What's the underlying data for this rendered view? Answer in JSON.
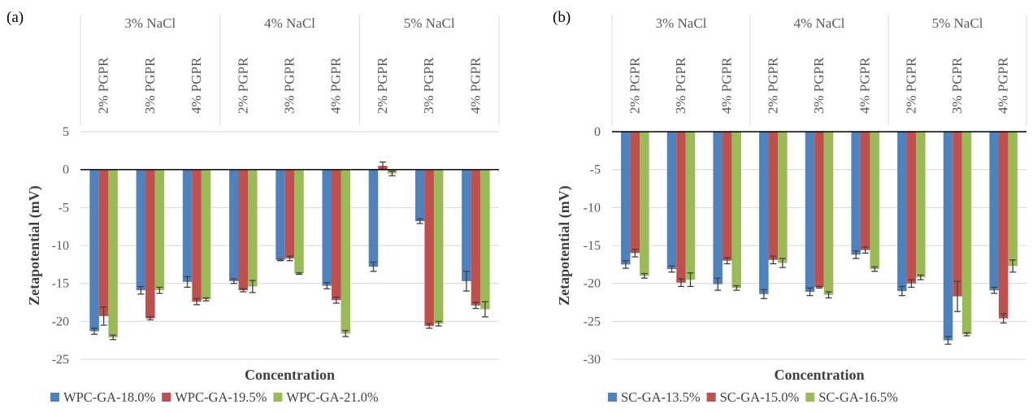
{
  "chart_data": [
    {
      "type": "bar",
      "panel_label": "(a)",
      "xlabel": "Concentration",
      "ylabel": "Zetapotential (mV)",
      "ylim": [
        -25,
        5
      ],
      "yticks": [
        5,
        0,
        -5,
        -10,
        -15,
        -20,
        -25
      ],
      "groups": [
        "3% NaCl",
        "4% NaCl",
        "5% NaCl"
      ],
      "categories": [
        "2% PGPR",
        "3% PGPR",
        "4% PGPR",
        "2% PGPR",
        "3% PGPR",
        "4% PGPR",
        "2% PGPR",
        "3% PGPR",
        "4% PGPR"
      ],
      "legend_position": "bottom",
      "series": [
        {
          "name": "WPC-GA-18.0%",
          "color": "#4f81bd",
          "values": [
            -21.3,
            -15.9,
            -14.8,
            -14.7,
            -11.9,
            -15.3,
            -12.8,
            -6.8,
            -14.7
          ],
          "errors": [
            0.4,
            0.5,
            0.7,
            0.3,
            0.1,
            0.4,
            0.6,
            0.3,
            1.3
          ]
        },
        {
          "name": "WPC-GA-19.5%",
          "color": "#c0504d",
          "values": [
            -19.3,
            -19.6,
            -17.4,
            -15.9,
            -11.7,
            -17.2,
            0.5,
            -20.6,
            -17.9
          ],
          "errors": [
            1.2,
            0.2,
            0.4,
            0.2,
            0.3,
            0.4,
            0.5,
            0.3,
            0.4
          ]
        },
        {
          "name": "WPC-GA-21.0%",
          "color": "#9bbb59",
          "values": [
            -22.1,
            -15.9,
            -17.1,
            -15.4,
            -13.7,
            -21.6,
            -0.5,
            -20.3,
            -18.4
          ],
          "errors": [
            0.3,
            0.4,
            0.2,
            0.8,
            0.1,
            0.4,
            0.3,
            0.3,
            1.0
          ]
        }
      ]
    },
    {
      "type": "bar",
      "panel_label": "(b)",
      "xlabel": "Concentration",
      "ylabel": "Zetapotential (mV)",
      "ylim": [
        -30,
        0
      ],
      "yticks": [
        0,
        -5,
        -10,
        -15,
        -20,
        -25,
        -30
      ],
      "groups": [
        "3% NaCl",
        "4% NaCl",
        "5% NaCl"
      ],
      "categories": [
        "2% PGPR",
        "3% PGPR",
        "4% PGPR",
        "2% PGPR",
        "3% PGPR",
        "4% PGPR",
        "2% PGPR",
        "3% PGPR",
        "4% PGPR"
      ],
      "legend_position": "bottom",
      "series": [
        {
          "name": "SC-GA-13.5%",
          "color": "#4f81bd",
          "values": [
            -17.5,
            -18.1,
            -20.1,
            -21.4,
            -21.1,
            -16.2,
            -21.0,
            -27.5,
            -20.9
          ],
          "errors": [
            0.5,
            0.4,
            0.8,
            0.6,
            0.5,
            0.5,
            0.6,
            0.5,
            0.4
          ]
        },
        {
          "name": "SC-GA-15.0%",
          "color": "#c0504d",
          "values": [
            -16.0,
            -19.9,
            -17.0,
            -16.9,
            -20.5,
            -15.6,
            -20.0,
            -21.7,
            -24.6
          ],
          "errors": [
            0.5,
            0.5,
            0.4,
            0.5,
            0.1,
            0.4,
            0.5,
            2.0,
            0.6
          ]
        },
        {
          "name": "SC-GA-16.5%",
          "color": "#9bbb59",
          "values": [
            -19.0,
            -19.5,
            -20.6,
            -17.3,
            -21.5,
            -18.1,
            -19.2,
            -26.7,
            -17.7
          ],
          "errors": [
            0.3,
            0.9,
            0.3,
            0.6,
            0.4,
            0.3,
            0.3,
            0.2,
            0.8
          ]
        }
      ]
    }
  ]
}
